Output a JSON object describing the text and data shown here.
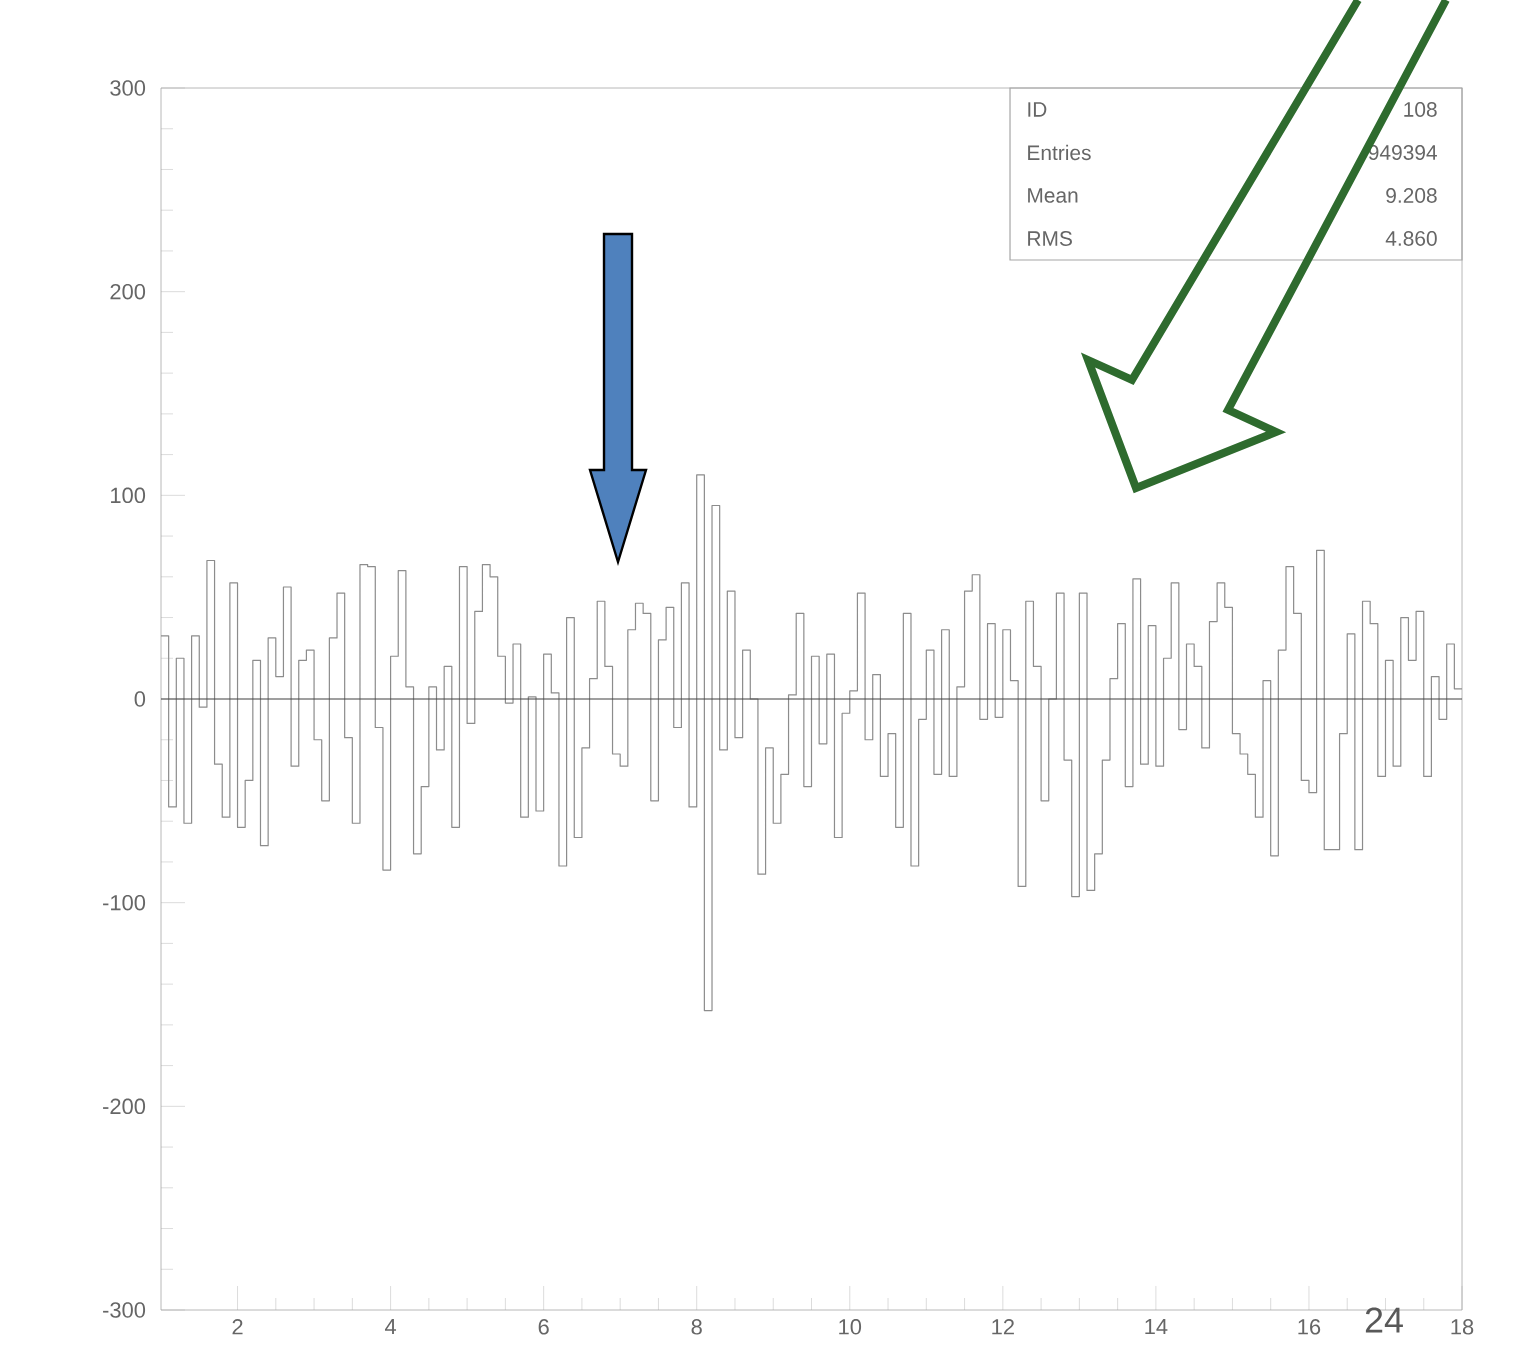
{
  "chart_data": {
    "type": "histogram",
    "bins": [
      1.0,
      1.1,
      1.2,
      1.3,
      1.4,
      1.5,
      1.6,
      1.7,
      1.8,
      1.9,
      2.0,
      2.1,
      2.2,
      2.3,
      2.4,
      2.5,
      2.6,
      2.7,
      2.8,
      2.9,
      3.0,
      3.1,
      3.2,
      3.3,
      3.4,
      3.5,
      3.6,
      3.7,
      3.8,
      3.9,
      4.0,
      4.1,
      4.2,
      4.3,
      4.4,
      4.5,
      4.6,
      4.7,
      4.8,
      4.9,
      5.0,
      5.1,
      5.2,
      5.3,
      5.4,
      5.5,
      5.6,
      5.7,
      5.8,
      5.9,
      6.0,
      6.1,
      6.2,
      6.3,
      6.4,
      6.5,
      6.6,
      6.7,
      6.8,
      6.9,
      7.0,
      7.1,
      7.2,
      7.3,
      7.4,
      7.5,
      7.6,
      7.7,
      7.8,
      7.9,
      8.0,
      8.1,
      8.2,
      8.3,
      8.4,
      8.5,
      8.6,
      8.7,
      8.8,
      8.9,
      9.0,
      9.1,
      9.2,
      9.3,
      9.4,
      9.5,
      9.6,
      9.7,
      9.8,
      9.9,
      10.0,
      10.1,
      10.2,
      10.3,
      10.4,
      10.5,
      10.6,
      10.7,
      10.8,
      10.9,
      11.0,
      11.1,
      11.2,
      11.3,
      11.4,
      11.5,
      11.6,
      11.7,
      11.8,
      11.9,
      12.0,
      12.1,
      12.2,
      12.3,
      12.4,
      12.5,
      12.6,
      12.7,
      12.8,
      12.9,
      13.0,
      13.1,
      13.2,
      13.3,
      13.4,
      13.5,
      13.6,
      13.7,
      13.8,
      13.9,
      14.0,
      14.1,
      14.2,
      14.3,
      14.4,
      14.5,
      14.6,
      14.7,
      14.8,
      14.9,
      15.0,
      15.1,
      15.2,
      15.3,
      15.4,
      15.5,
      15.6,
      15.7,
      15.8,
      15.9,
      16.0,
      16.1,
      16.2,
      16.3,
      16.4,
      16.5,
      16.6,
      16.7,
      16.8,
      16.9,
      17.0,
      17.1,
      17.2,
      17.3,
      17.4,
      17.5,
      17.6,
      17.7,
      17.8,
      17.9,
      18.0
    ],
    "values": [
      31,
      -53,
      20,
      -61,
      31,
      -4,
      68,
      -32,
      -58,
      57,
      -63,
      -40,
      19,
      -72,
      30,
      11,
      55,
      -33,
      19,
      24,
      -20,
      -50,
      30,
      52,
      -19,
      -61,
      66,
      65,
      -14,
      -84,
      21,
      63,
      6,
      -76,
      -43,
      6,
      -25,
      16,
      -63,
      65,
      -12,
      43,
      66,
      60,
      21,
      -2,
      27,
      -58,
      1,
      -55,
      22,
      3,
      -82,
      40,
      -68,
      -24,
      10,
      48,
      16,
      -27,
      -33,
      34,
      47,
      42,
      -50,
      29,
      45,
      -14,
      57,
      -53,
      110,
      -153,
      95,
      -25,
      53,
      -19,
      24,
      0,
      -86,
      -24,
      -61,
      -37,
      2,
      42,
      -43,
      21,
      -22,
      22,
      -68,
      -7,
      4,
      52,
      -20,
      12,
      -38,
      -17,
      -63,
      42,
      -82,
      -10,
      24,
      -37,
      34,
      -38,
      6,
      53,
      61,
      -10,
      37,
      -9,
      34,
      9,
      -92,
      48,
      16,
      -50,
      0,
      52,
      -30,
      -97,
      52,
      -94,
      -76,
      -30,
      10,
      37,
      -43,
      59,
      -32,
      36,
      -33,
      20,
      57,
      -15,
      27,
      16,
      -24,
      38,
      57,
      45,
      -17,
      -27,
      -37,
      -58,
      9,
      -77,
      24,
      65,
      42,
      -40,
      -46,
      73,
      -74,
      -74,
      -17,
      32,
      -74,
      48,
      37,
      -38,
      19,
      -33,
      40,
      19,
      43,
      -38,
      11,
      -10,
      27,
      5
    ],
    "color": "#8c8c8c",
    "xlim": [
      1,
      18
    ],
    "ylim": [
      -300,
      300
    ],
    "xticks": [
      2,
      4,
      6,
      8,
      10,
      12,
      14,
      16,
      18
    ],
    "yticks": [
      -300,
      -200,
      -100,
      0,
      100,
      200,
      300
    ],
    "ref_lines": [
      {
        "axis": "y",
        "value": 0,
        "color": "#404040"
      }
    ],
    "annotations": [
      "ID",
      "108",
      "Entries",
      "949394",
      "Mean",
      "9.208",
      "RMS",
      "4.860",
      "24"
    ]
  }
}
